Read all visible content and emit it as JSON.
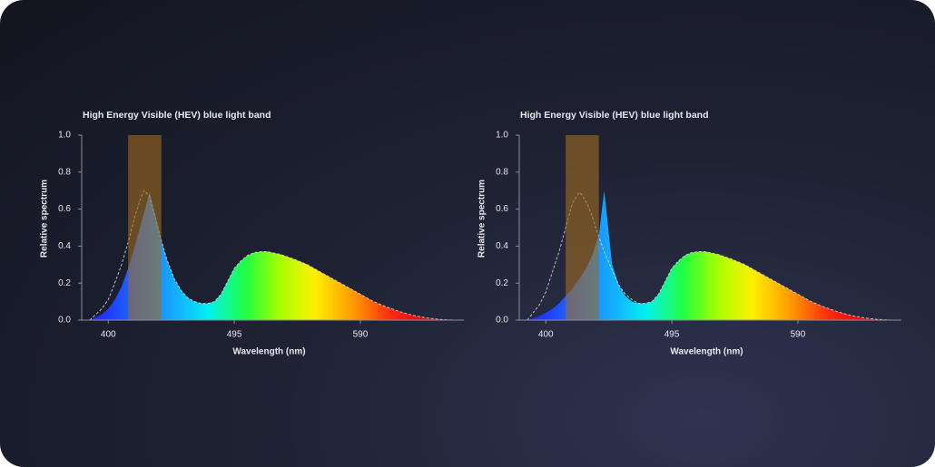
{
  "chart_data": [
    {
      "type": "area",
      "title": "High Energy Visible (HEV) blue light band",
      "xlabel": "Wavelength (nm)",
      "ylabel": "Relative spectrum",
      "x": [
        386,
        395,
        400,
        405,
        410,
        415,
        420,
        425,
        427,
        431,
        435,
        440,
        444,
        450,
        455,
        460,
        465,
        470,
        475,
        480,
        485,
        490,
        495,
        500,
        505,
        510,
        515,
        520,
        530,
        540,
        550,
        560,
        570,
        580,
        590,
        600,
        610,
        620,
        630,
        640,
        650,
        660
      ],
      "series": [
        {
          "values": [
            0,
            0.03,
            0.06,
            0.11,
            0.18,
            0.28,
            0.4,
            0.53,
            0.58,
            0.69,
            0.58,
            0.43,
            0.33,
            0.22,
            0.16,
            0.12,
            0.1,
            0.09,
            0.09,
            0.1,
            0.14,
            0.21,
            0.28,
            0.32,
            0.35,
            0.365,
            0.37,
            0.37,
            0.355,
            0.33,
            0.3,
            0.26,
            0.22,
            0.18,
            0.14,
            0.1,
            0.07,
            0.045,
            0.025,
            0.012,
            0.004,
            0
          ]
        },
        {
          "values": [
            0,
            0.06,
            0.11,
            0.2,
            0.3,
            0.42,
            0.56,
            0.67,
            0.7,
            0.67,
            0.57,
            0.43,
            0.33,
            0.22,
            0.16,
            0.12,
            0.1,
            0.09,
            0.09,
            0.1,
            0.14,
            0.21,
            0.28,
            0.32,
            0.35,
            0.365,
            0.37,
            0.37,
            0.355,
            0.33,
            0.3,
            0.26,
            0.22,
            0.18,
            0.14,
            0.1,
            0.07,
            0.045,
            0.025,
            0.012,
            0.004,
            0
          ],
          "dashed": true,
          "color": "#d8d8d8"
        }
      ],
      "hev_band": [
        415,
        440
      ],
      "band_color": "#a06a20",
      "xlim": [
        380,
        668
      ],
      "xticks": [
        400,
        495,
        590
      ],
      "ylim": [
        0,
        1
      ],
      "yticks": [
        {
          "value": 0,
          "label": "0.0"
        },
        0.2,
        0.4,
        0.6,
        0.8,
        {
          "value": 1,
          "label": "1.0"
        }
      ],
      "grid": false
    },
    {
      "type": "area",
      "title": "High Energy Visible (HEV) blue light band",
      "xlabel": "Wavelength (nm)",
      "ylabel": "Relative spectrum",
      "x": [
        386,
        395,
        400,
        405,
        410,
        415,
        420,
        425,
        427,
        431,
        435,
        440,
        444,
        450,
        455,
        460,
        465,
        470,
        475,
        480,
        485,
        490,
        495,
        500,
        505,
        510,
        515,
        520,
        530,
        540,
        550,
        560,
        570,
        580,
        590,
        600,
        610,
        620,
        630,
        640,
        650,
        660
      ],
      "series": [
        {
          "values": [
            0,
            0.02,
            0.04,
            0.06,
            0.09,
            0.13,
            0.17,
            0.22,
            0.24,
            0.29,
            0.35,
            0.46,
            0.7,
            0.3,
            0.19,
            0.13,
            0.1,
            0.09,
            0.09,
            0.1,
            0.14,
            0.21,
            0.28,
            0.32,
            0.35,
            0.365,
            0.37,
            0.37,
            0.355,
            0.33,
            0.3,
            0.26,
            0.22,
            0.18,
            0.14,
            0.1,
            0.07,
            0.045,
            0.025,
            0.012,
            0.004,
            0
          ]
        },
        {
          "values": [
            0,
            0.08,
            0.15,
            0.26,
            0.37,
            0.5,
            0.63,
            0.69,
            0.68,
            0.63,
            0.56,
            0.45,
            0.37,
            0.27,
            0.19,
            0.14,
            0.11,
            0.09,
            0.09,
            0.1,
            0.14,
            0.21,
            0.28,
            0.32,
            0.35,
            0.365,
            0.37,
            0.37,
            0.355,
            0.33,
            0.3,
            0.26,
            0.22,
            0.18,
            0.14,
            0.1,
            0.07,
            0.045,
            0.025,
            0.012,
            0.004,
            0
          ],
          "dashed": true,
          "color": "#d8d8d8"
        }
      ],
      "hev_band": [
        415,
        440
      ],
      "band_color": "#a06a20",
      "xlim": [
        380,
        668
      ],
      "xticks": [
        400,
        495,
        590
      ],
      "ylim": [
        0,
        1
      ],
      "yticks": [
        {
          "value": 0,
          "label": "0.0"
        },
        0.2,
        0.4,
        0.6,
        0.8,
        {
          "value": 1,
          "label": "1.0"
        }
      ],
      "grid": false
    }
  ]
}
